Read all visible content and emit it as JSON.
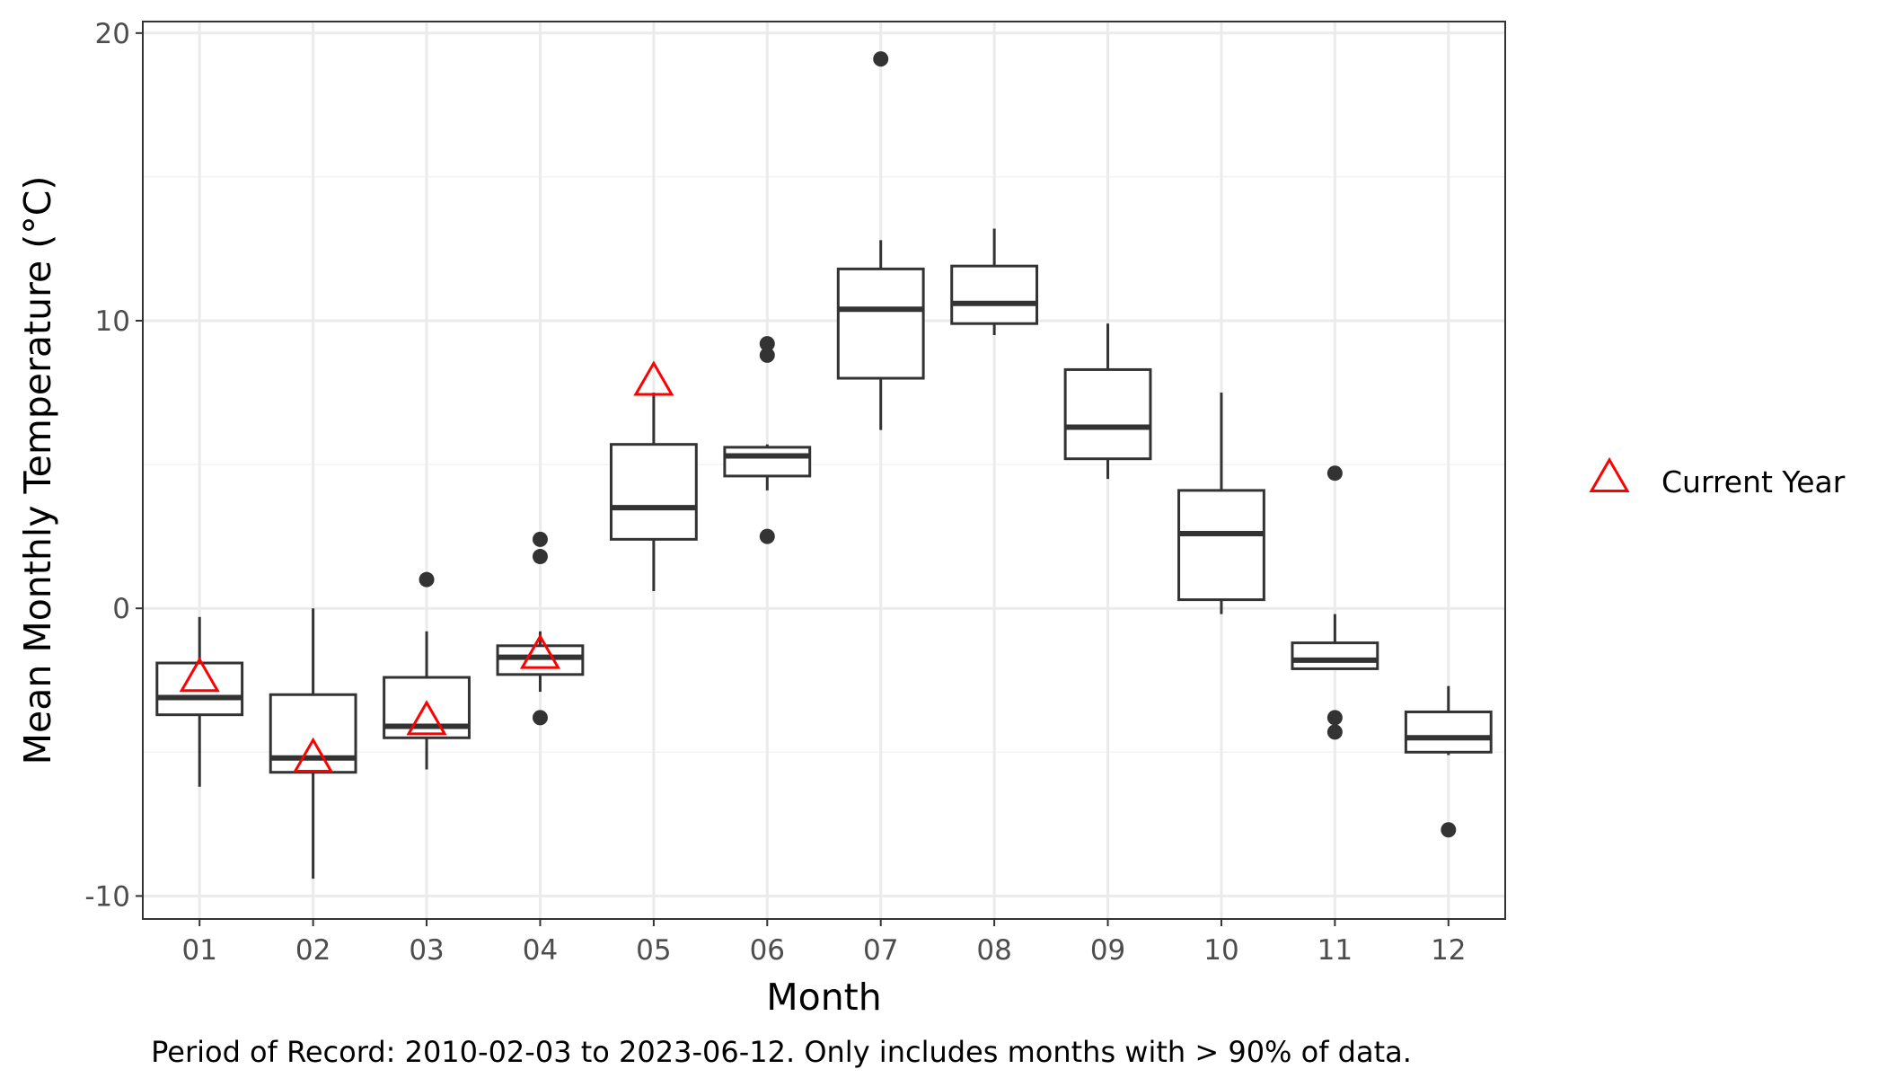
{
  "chart_data": {
    "type": "box",
    "xlabel": "Month",
    "ylabel": "Mean Monthly Temperature (°C)",
    "caption": "Period of Record: 2010-02-03 to 2023-06-12. Only includes months with > 90% of data.",
    "ylim": [
      -10.8,
      20.4
    ],
    "yticks": [
      -10,
      0,
      10,
      20
    ],
    "ytick_labels": [
      "-10",
      "0",
      "10",
      "20"
    ],
    "grid": true,
    "legend_position": "right",
    "categories": [
      "01",
      "02",
      "03",
      "04",
      "05",
      "06",
      "07",
      "08",
      "09",
      "10",
      "11",
      "12"
    ],
    "boxes": [
      {
        "month": "01",
        "whisker_low": -6.2,
        "q1": -3.7,
        "median": -3.1,
        "q3": -1.9,
        "whisker_high": -0.3,
        "outliers": []
      },
      {
        "month": "02",
        "whisker_low": -9.4,
        "q1": -5.7,
        "median": -5.2,
        "q3": -3.0,
        "whisker_high": 0.0,
        "outliers": []
      },
      {
        "month": "03",
        "whisker_low": -5.6,
        "q1": -4.5,
        "median": -4.1,
        "q3": -2.4,
        "whisker_high": -0.8,
        "outliers": [
          1.0
        ]
      },
      {
        "month": "04",
        "whisker_low": -2.9,
        "q1": -2.3,
        "median": -1.7,
        "q3": -1.3,
        "whisker_high": -0.8,
        "outliers": [
          2.4,
          1.8,
          -3.8
        ]
      },
      {
        "month": "05",
        "whisker_low": 0.6,
        "q1": 2.4,
        "median": 3.5,
        "q3": 5.7,
        "whisker_high": 7.5,
        "outliers": []
      },
      {
        "month": "06",
        "whisker_low": 4.1,
        "q1": 4.6,
        "median": 5.3,
        "q3": 5.6,
        "whisker_high": 5.7,
        "outliers": [
          9.2,
          8.8,
          2.5
        ]
      },
      {
        "month": "07",
        "whisker_low": 6.2,
        "q1": 8.0,
        "median": 10.4,
        "q3": 11.8,
        "whisker_high": 12.8,
        "outliers": [
          19.1
        ]
      },
      {
        "month": "08",
        "whisker_low": 9.5,
        "q1": 9.9,
        "median": 10.6,
        "q3": 11.9,
        "whisker_high": 13.2,
        "outliers": []
      },
      {
        "month": "09",
        "whisker_low": 4.5,
        "q1": 5.2,
        "median": 6.3,
        "q3": 8.3,
        "whisker_high": 9.9,
        "outliers": []
      },
      {
        "month": "10",
        "whisker_low": -0.2,
        "q1": 0.3,
        "median": 2.6,
        "q3": 4.1,
        "whisker_high": 7.5,
        "outliers": []
      },
      {
        "month": "11",
        "whisker_low": -2.1,
        "q1": -2.1,
        "median": -1.8,
        "q3": -1.2,
        "whisker_high": -0.2,
        "outliers": [
          4.7,
          -3.8,
          -4.3
        ]
      },
      {
        "month": "12",
        "whisker_low": -5.1,
        "q1": -5.0,
        "median": -4.5,
        "q3": -3.6,
        "whisker_high": -2.7,
        "outliers": [
          -7.7
        ]
      }
    ],
    "current_year": {
      "name": "Current Year",
      "color": "#ff0000",
      "points": [
        {
          "month": "01",
          "value": -2.5
        },
        {
          "month": "02",
          "value": -5.3
        },
        {
          "month": "03",
          "value": -4.0
        },
        {
          "month": "04",
          "value": -1.7
        },
        {
          "month": "05",
          "value": 7.8
        }
      ]
    },
    "colors": {
      "box_stroke": "#333333",
      "outlier": "#333333",
      "grid_major": "#ebebeb",
      "grid_minor": "#f3f3f3",
      "panel_border": "#333333",
      "background": "#ffffff"
    }
  }
}
